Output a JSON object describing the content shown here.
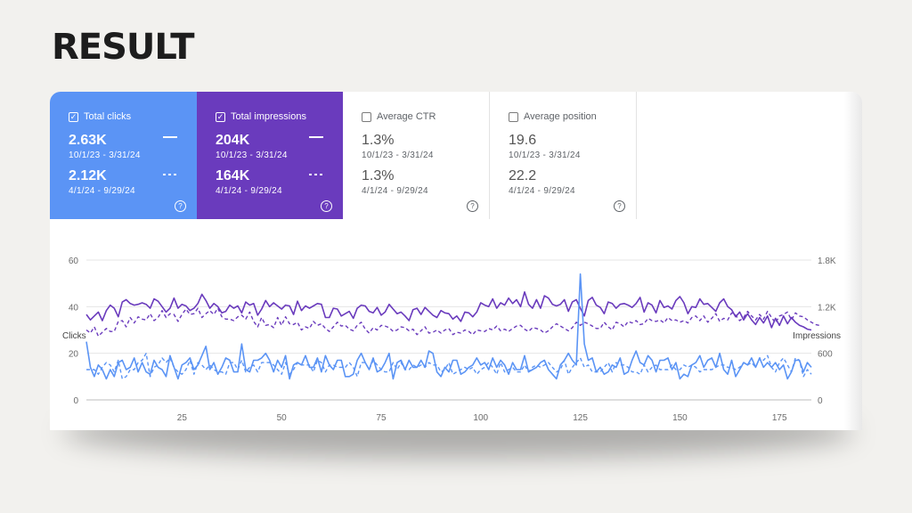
{
  "headline": "RESULT",
  "metrics": [
    {
      "label": "Total clicks",
      "checked": true,
      "value1": "2.63K",
      "date1": "10/1/23 - 3/31/24",
      "value2": "2.12K",
      "date2": "4/1/24 - 9/29/24"
    },
    {
      "label": "Total impressions",
      "checked": true,
      "value1": "204K",
      "date1": "10/1/23 - 3/31/24",
      "value2": "164K",
      "date2": "4/1/24 - 9/29/24"
    },
    {
      "label": "Average CTR",
      "checked": false,
      "value1": "1.3%",
      "date1": "10/1/23 - 3/31/24",
      "value2": "1.3%",
      "date2": "4/1/24 - 9/29/24"
    },
    {
      "label": "Average position",
      "checked": false,
      "value1": "19.6",
      "date1": "10/1/23 - 3/31/24",
      "value2": "22.2",
      "date2": "4/1/24 - 9/29/24"
    }
  ],
  "icons": {
    "checkbox": "check-icon",
    "help": "help-circle-icon",
    "solid_legend": "solid-line-icon",
    "dashed_legend": "dashed-line-icon"
  },
  "colors": {
    "clicks": "#5b94f5",
    "impressions": "#6a3bbd",
    "grid": "#e4e4e4",
    "axis_text": "#6b6b6b"
  },
  "chart_data": {
    "type": "line",
    "ylabel_left": "Clicks",
    "ylabel_right": "Impressions",
    "ylim_left": [
      0,
      60
    ],
    "ylim_right": [
      0,
      1800
    ],
    "yticks_left": [
      "0",
      "20",
      "40",
      "60"
    ],
    "yticks_right": [
      "0",
      "600",
      "1.2K",
      "1.8K"
    ],
    "xlim": [
      1,
      183
    ],
    "xticks": [
      25,
      50,
      75,
      100,
      125,
      150,
      175
    ],
    "grid": true,
    "series": [
      {
        "name": "Total clicks",
        "period": "10/1/23 - 3/31/24",
        "axis": "left",
        "style": "solid",
        "color": "#5b94f5",
        "values": [
          25,
          14,
          10,
          15,
          13,
          9,
          13,
          10,
          16,
          17,
          13,
          14,
          18,
          12,
          16,
          12,
          11,
          17,
          14,
          13,
          10,
          19,
          14,
          9,
          15,
          16,
          18,
          13,
          15,
          19,
          23,
          13,
          16,
          11,
          14,
          18,
          17,
          12,
          12,
          24,
          13,
          12,
          17,
          17,
          18,
          20,
          17,
          12,
          17,
          14,
          19,
          9,
          15,
          16,
          15,
          19,
          14,
          14,
          18,
          12,
          19,
          15,
          13,
          17,
          17,
          10,
          10,
          11,
          17,
          20,
          16,
          13,
          18,
          12,
          13,
          16,
          20,
          9,
          16,
          17,
          13,
          17,
          14,
          14,
          17,
          14,
          21,
          20,
          12,
          10,
          14,
          12,
          17,
          17,
          11,
          12,
          14,
          15,
          18,
          15,
          16,
          13,
          18,
          14,
          17,
          15,
          11,
          16,
          13,
          13,
          19,
          12,
          13,
          14,
          16,
          17,
          13,
          11,
          9,
          15,
          17,
          20,
          17,
          15,
          54,
          24,
          17,
          18,
          12,
          14,
          11,
          12,
          15,
          14,
          18,
          11,
          12,
          17,
          21,
          16,
          15,
          19,
          17,
          12,
          17,
          17,
          18,
          13,
          16,
          9,
          11,
          10,
          15,
          16,
          19,
          14,
          17,
          18,
          14,
          20,
          13,
          11,
          17,
          10,
          13,
          16,
          15,
          18,
          14,
          18,
          14,
          16,
          14,
          16,
          13,
          15,
          9,
          12,
          17,
          17,
          12,
          16,
          14
        ]
      },
      {
        "name": "Total clicks",
        "period": "4/1/24 - 9/29/24",
        "axis": "left",
        "style": "dashed",
        "color": "#5b94f5",
        "values": [
          13,
          13,
          13,
          11,
          14,
          16,
          15,
          12,
          17,
          9,
          10,
          13,
          13,
          16,
          17,
          20,
          10,
          14,
          15,
          18,
          16,
          18,
          14,
          12,
          11,
          13,
          17,
          11,
          16,
          15,
          13,
          15,
          13,
          12,
          12,
          11,
          16,
          16,
          13,
          17,
          12,
          14,
          15,
          12,
          16,
          16,
          16,
          15,
          13,
          11,
          16,
          11,
          13,
          16,
          15,
          15,
          15,
          12,
          17,
          16,
          12,
          15,
          15,
          14,
          14,
          14,
          16,
          14,
          10,
          16,
          16,
          13,
          17,
          15,
          13,
          12,
          12,
          16,
          13,
          16,
          13,
          13,
          15,
          14,
          15,
          14,
          16,
          15,
          15,
          12,
          13,
          16,
          11,
          12,
          13,
          14,
          13,
          14,
          11,
          13,
          14,
          16,
          14,
          11,
          16,
          12,
          13,
          14,
          12,
          12,
          15,
          12,
          14,
          15,
          14,
          15,
          16,
          14,
          12,
          13,
          17,
          11,
          14,
          16,
          18,
          14,
          15,
          12,
          12,
          12,
          14,
          16,
          12,
          16,
          15,
          15,
          14,
          12,
          12,
          11,
          15,
          12,
          14,
          15,
          13,
          13,
          13,
          15,
          13,
          13,
          15,
          14,
          15,
          14,
          12,
          13,
          13,
          13,
          14,
          15,
          15,
          14,
          14,
          13,
          14,
          16,
          15,
          16,
          14,
          18,
          17,
          19,
          14,
          12,
          16,
          18,
          15,
          12,
          18,
          17,
          10,
          13,
          11
        ]
      },
      {
        "name": "Total impressions",
        "period": "10/1/23 - 3/31/24",
        "axis": "right",
        "style": "solid",
        "color": "#6a3bbd",
        "values": [
          1100,
          1030,
          1080,
          1130,
          1020,
          1150,
          1220,
          1180,
          1070,
          1260,
          1290,
          1240,
          1220,
          1230,
          1250,
          1230,
          1180,
          1300,
          1270,
          1200,
          1130,
          1180,
          1310,
          1180,
          1230,
          1210,
          1150,
          1180,
          1240,
          1360,
          1280,
          1180,
          1240,
          1200,
          1120,
          1140,
          1220,
          1180,
          1210,
          1120,
          1260,
          1220,
          1240,
          1090,
          1170,
          1280,
          1200,
          1250,
          1210,
          1170,
          1220,
          1210,
          1100,
          1270,
          1150,
          1210,
          1180,
          1210,
          1240,
          1230,
          1060,
          1060,
          1180,
          1170,
          1080,
          1110,
          1140,
          1050,
          1180,
          1220,
          1210,
          1140,
          1120,
          1190,
          1090,
          1130,
          1230,
          1170,
          1110,
          1130,
          1080,
          1020,
          1160,
          1180,
          1100,
          1190,
          1140,
          1090,
          1060,
          1150,
          1120,
          1110,
          1040,
          1080,
          1010,
          1130,
          1120,
          1070,
          1130,
          1250,
          1220,
          1200,
          1300,
          1180,
          1250,
          1220,
          1310,
          1240,
          1290,
          1200,
          1390,
          1230,
          1180,
          1290,
          1180,
          1340,
          1310,
          1230,
          1210,
          1230,
          1290,
          1140,
          1260,
          1290,
          1180,
          1080,
          1280,
          1320,
          1220,
          1190,
          1110,
          1260,
          1240,
          1180,
          1230,
          1240,
          1220,
          1190,
          1240,
          1320,
          1130,
          1250,
          1220,
          1120,
          1280,
          1190,
          1210,
          1170,
          1280,
          1330,
          1250,
          1110,
          1200,
          1190,
          1300,
          1230,
          1240,
          1190,
          1140,
          1250,
          1300,
          1200,
          1160,
          1070,
          1130,
          1030,
          1110,
          1030,
          970,
          1060,
          990,
          1080,
          930,
          1050,
          960,
          1080,
          980,
          1060,
          1000,
          960,
          940,
          910,
          900
        ]
      },
      {
        "name": "Total impressions",
        "period": "4/1/24 - 9/29/24",
        "axis": "right",
        "style": "dashed",
        "color": "#6a3bbd",
        "values": [
          900,
          860,
          940,
          820,
          870,
          920,
          880,
          880,
          1010,
          1020,
          940,
          1060,
          990,
          1070,
          1040,
          1030,
          1110,
          1020,
          1060,
          1150,
          1060,
          1110,
          1100,
          1010,
          1100,
          1170,
          1100,
          1110,
          1180,
          1060,
          1110,
          1150,
          1100,
          1180,
          1070,
          1040,
          1040,
          1020,
          1070,
          1090,
          1040,
          1130,
          1010,
          940,
          1060,
          960,
          970,
          930,
          1060,
          960,
          1070,
          980,
          970,
          1000,
          900,
          940,
          920,
          1010,
          960,
          980,
          920,
          880,
          940,
          1000,
          950,
          960,
          910,
          890,
          960,
          1000,
          910,
          860,
          930,
          900,
          960,
          950,
          930,
          880,
          900,
          940,
          930,
          890,
          910,
          840,
          890,
          940,
          860,
          870,
          900,
          860,
          900,
          920,
          840,
          870,
          860,
          900,
          880,
          840,
          900,
          890,
          880,
          920,
          900,
          950,
          890,
          910,
          880,
          920,
          950,
          960,
          910,
          880,
          930,
          920,
          900,
          860,
          890,
          940,
          980,
          950,
          920,
          890,
          930,
          1000,
          960,
          1000,
          980,
          950,
          920,
          920,
          1000,
          940,
          900,
          1000,
          980,
          940,
          1010,
          990,
          1020,
          970,
          980,
          1050,
          1020,
          1010,
          1030,
          990,
          1060,
          1020,
          1030,
          1000,
          1020,
          990,
          1060,
          1080,
          1020,
          1080,
          1000,
          1050,
          1110,
          1010,
          1050,
          1030,
          1120,
          1090,
          1020,
          1060,
          1140,
          1080,
          1030,
          1100,
          1040,
          1140,
          1060,
          990,
          1080,
          1100,
          1130,
          1030,
          1120,
          1080,
          1070,
          1030,
          1000,
          970,
          960
        ]
      }
    ]
  }
}
